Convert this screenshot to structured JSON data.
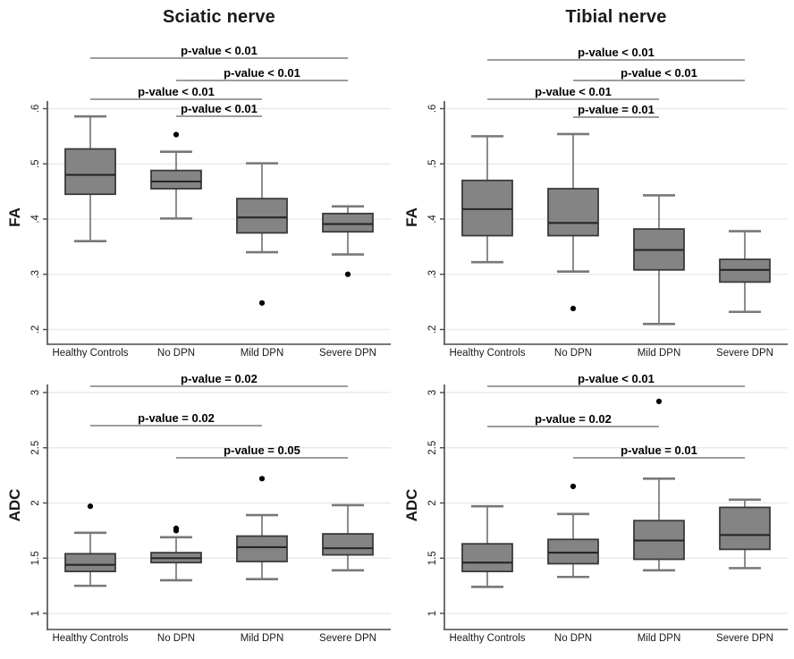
{
  "figure_name": "Box plots of FA and ADC by nerve and DPN severity group",
  "style": {
    "background": "#ffffff",
    "box_fill": "#848484",
    "box_stroke": "#3a3a3a",
    "median_stroke": "#262626",
    "whisker_stroke": "#5a5a5a",
    "cap_stroke": "#787878",
    "grid_color": "#e2edf0",
    "axis_color": "#4a4a4a",
    "bracket_color": "#8f8f8f",
    "outlier_color": "#000000",
    "text_color": "#1a1a1a"
  },
  "chart_data": [
    {
      "id": "sciatic-fa",
      "type": "box",
      "row": "top",
      "title": "Sciatic nerve",
      "ylabel": "FA",
      "xlabel": "",
      "ylim": [
        0.2,
        0.6
      ],
      "grid": true,
      "yticks": [
        {
          "v": 0.2,
          "t": ".2"
        },
        {
          "v": 0.3,
          "t": ".3"
        },
        {
          "v": 0.4,
          "t": ".4"
        },
        {
          "v": 0.5,
          "t": ".5"
        },
        {
          "v": 0.6,
          "t": ".6"
        }
      ],
      "categories": [
        "Healthy Controls",
        "No DPN",
        "Mild DPN",
        "Severe DPN"
      ],
      "boxes": [
        {
          "low": 0.36,
          "q1": 0.445,
          "median": 0.48,
          "q3": 0.527,
          "high": 0.586,
          "outliers": []
        },
        {
          "low": 0.401,
          "q1": 0.455,
          "median": 0.468,
          "q3": 0.488,
          "high": 0.522,
          "outliers": [
            0.553
          ]
        },
        {
          "low": 0.34,
          "q1": 0.375,
          "median": 0.403,
          "q3": 0.437,
          "high": 0.501,
          "outliers": [
            0.248
          ]
        },
        {
          "low": 0.336,
          "q1": 0.377,
          "median": 0.391,
          "q3": 0.41,
          "high": 0.423,
          "outliers": [
            0.3
          ]
        }
      ],
      "comparisons": [
        {
          "from": 0,
          "to": 3,
          "label": "p-value < 0.01",
          "y": 65
        },
        {
          "from": 1,
          "to": 3,
          "label": "p-value < 0.01",
          "y": 90
        },
        {
          "from": 0,
          "to": 2,
          "label": "p-value < 0.01",
          "y": 111
        },
        {
          "from": 1,
          "to": 2,
          "label": "p-value < 0.01",
          "y": 130
        }
      ]
    },
    {
      "id": "tibial-fa",
      "type": "box",
      "row": "top",
      "title": "Tibial nerve",
      "ylabel": "FA",
      "xlabel": "",
      "ylim": [
        0.2,
        0.6
      ],
      "grid": true,
      "yticks": [
        {
          "v": 0.2,
          "t": ".2"
        },
        {
          "v": 0.3,
          "t": ".3"
        },
        {
          "v": 0.4,
          "t": ".4"
        },
        {
          "v": 0.5,
          "t": ".5"
        },
        {
          "v": 0.6,
          "t": ".6"
        }
      ],
      "categories": [
        "Healthy Controls",
        "No DPN",
        "Mild DPN",
        "Severe DPN"
      ],
      "boxes": [
        {
          "low": 0.322,
          "q1": 0.37,
          "median": 0.418,
          "q3": 0.47,
          "high": 0.55,
          "outliers": []
        },
        {
          "low": 0.305,
          "q1": 0.37,
          "median": 0.393,
          "q3": 0.455,
          "high": 0.554,
          "outliers": [
            0.238
          ]
        },
        {
          "low": 0.21,
          "q1": 0.308,
          "median": 0.344,
          "q3": 0.382,
          "high": 0.443,
          "outliers": []
        },
        {
          "low": 0.232,
          "q1": 0.286,
          "median": 0.308,
          "q3": 0.327,
          "high": 0.378,
          "outliers": []
        }
      ],
      "comparisons": [
        {
          "from": 0,
          "to": 3,
          "label": "p-value < 0.01",
          "y": 67
        },
        {
          "from": 1,
          "to": 3,
          "label": "p-value < 0.01",
          "y": 90
        },
        {
          "from": 0,
          "to": 2,
          "label": "p-value < 0.01",
          "y": 111
        },
        {
          "from": 1,
          "to": 2,
          "label": "p-value = 0.01",
          "y": 131
        }
      ]
    },
    {
      "id": "sciatic-adc",
      "type": "box",
      "row": "bottom",
      "title": "",
      "ylabel": "ADC",
      "xlabel": "",
      "ylim": [
        1,
        3
      ],
      "grid": true,
      "yticks": [
        {
          "v": 1,
          "t": "1"
        },
        {
          "v": 1.5,
          "t": "1.5"
        },
        {
          "v": 2,
          "t": "2"
        },
        {
          "v": 2.5,
          "t": "2.5"
        },
        {
          "v": 3,
          "t": "3"
        }
      ],
      "categories": [
        "Healthy Controls",
        "No DPN",
        "Mild DPN",
        "Severe DPN"
      ],
      "boxes": [
        {
          "low": 1.25,
          "q1": 1.38,
          "median": 1.44,
          "q3": 1.54,
          "high": 1.73,
          "outliers": [
            1.97
          ]
        },
        {
          "low": 1.3,
          "q1": 1.46,
          "median": 1.5,
          "q3": 1.55,
          "high": 1.69,
          "outliers": [
            1.75,
            1.77
          ]
        },
        {
          "low": 1.31,
          "q1": 1.47,
          "median": 1.6,
          "q3": 1.7,
          "high": 1.89,
          "outliers": [
            2.22
          ]
        },
        {
          "low": 1.39,
          "q1": 1.53,
          "median": 1.59,
          "q3": 1.72,
          "high": 1.98,
          "outliers": []
        }
      ],
      "comparisons": [
        {
          "from": 0,
          "to": 3,
          "label": "p-value = 0.02",
          "y": 32
        },
        {
          "from": 0,
          "to": 2,
          "label": "p-value = 0.02",
          "y": 76
        },
        {
          "from": 1,
          "to": 3,
          "label": "p-value = 0.05",
          "y": 112
        }
      ]
    },
    {
      "id": "tibial-adc",
      "type": "box",
      "row": "bottom",
      "title": "",
      "ylabel": "ADC",
      "xlabel": "",
      "ylim": [
        1,
        3
      ],
      "grid": true,
      "yticks": [
        {
          "v": 1,
          "t": "1"
        },
        {
          "v": 1.5,
          "t": "1.5"
        },
        {
          "v": 2,
          "t": "2"
        },
        {
          "v": 2.5,
          "t": "2.5"
        },
        {
          "v": 3,
          "t": "3"
        }
      ],
      "categories": [
        "Healthy Controls",
        "No DPN",
        "Mild DPN",
        "Severe DPN"
      ],
      "boxes": [
        {
          "low": 1.24,
          "q1": 1.38,
          "median": 1.46,
          "q3": 1.63,
          "high": 1.97,
          "outliers": []
        },
        {
          "low": 1.33,
          "q1": 1.45,
          "median": 1.55,
          "q3": 1.67,
          "high": 1.9,
          "outliers": [
            2.15
          ]
        },
        {
          "low": 1.39,
          "q1": 1.49,
          "median": 1.66,
          "q3": 1.84,
          "high": 2.22,
          "outliers": [
            2.92
          ]
        },
        {
          "low": 1.41,
          "q1": 1.58,
          "median": 1.71,
          "q3": 1.96,
          "high": 2.03,
          "outliers": []
        }
      ],
      "comparisons": [
        {
          "from": 0,
          "to": 3,
          "label": "p-value < 0.01",
          "y": 32
        },
        {
          "from": 0,
          "to": 2,
          "label": "p-value = 0.02",
          "y": 77
        },
        {
          "from": 1,
          "to": 3,
          "label": "p-value = 0.01",
          "y": 112
        }
      ]
    }
  ]
}
